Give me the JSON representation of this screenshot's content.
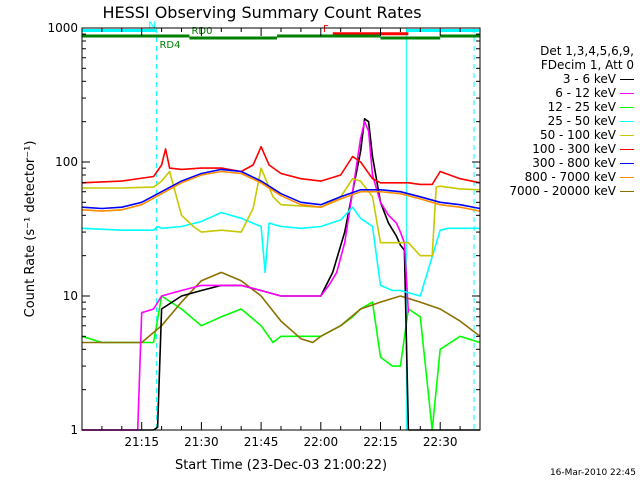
{
  "chart_data": {
    "type": "line",
    "title": "HESSI Observing Summary Count Rates",
    "xlabel": "Start Time (23-Dec-03 21:00:22)",
    "ylabel": "Count Rate (s⁻¹ detector⁻¹)",
    "x_unit": "minutes after 21:00",
    "xlim": [
      0,
      100
    ],
    "ylim": [
      1,
      1000
    ],
    "y_scale": "log",
    "x_ticks": [
      {
        "x": 15,
        "label": "21:15"
      },
      {
        "x": 30,
        "label": "21:30"
      },
      {
        "x": 45,
        "label": "21:45"
      },
      {
        "x": 60,
        "label": "22:00"
      },
      {
        "x": 75,
        "label": "22:15"
      },
      {
        "x": 90,
        "label": "22:30"
      }
    ],
    "y_ticks": [
      {
        "y": 1,
        "label": "1"
      },
      {
        "y": 10,
        "label": "10"
      },
      {
        "y": 100,
        "label": "100"
      },
      {
        "y": 1000,
        "label": "1000"
      }
    ],
    "grid": false,
    "legend_position": "right",
    "legend_header": [
      "Det 1,3,4,5,6,9,",
      "FDecim 1, Att 0"
    ],
    "vertical_markers": [
      {
        "x": 18.7,
        "color": "#00ffff",
        "style": "dashed"
      },
      {
        "x": 81.5,
        "color": "#00ffff",
        "style": "solid"
      },
      {
        "x": 98.5,
        "color": "#00ffff",
        "style": "dashed"
      }
    ],
    "flag_bars": [
      {
        "label": "N",
        "color": "#00ffff",
        "segments": [
          [
            0,
            18.7
          ],
          [
            81.5,
            100
          ]
        ],
        "y": 958
      },
      {
        "label": "F",
        "color": "#ff0000",
        "segments": [
          [
            63,
            82
          ]
        ],
        "y": 905
      },
      {
        "label": "RD0",
        "color": "#008000",
        "segments": [
          [
            0,
            27
          ],
          [
            49,
            75
          ],
          [
            90,
            100
          ]
        ],
        "y": 872
      },
      {
        "label": "RD4",
        "color": "#008000",
        "segments": [
          [
            27,
            49
          ],
          [
            75,
            90
          ]
        ],
        "y": 842
      }
    ],
    "series": [
      {
        "name": "3 - 6 keV",
        "color": "#000000",
        "x": [
          0,
          10,
          18,
          19,
          20,
          25,
          30,
          35,
          40,
          45,
          50,
          55,
          60,
          63,
          66,
          68,
          70,
          71,
          72,
          73,
          75,
          77,
          79,
          80,
          81,
          82,
          85,
          87,
          90,
          95,
          100
        ],
        "y": [
          1,
          1,
          1,
          1.05,
          8,
          10,
          11,
          12,
          12,
          11,
          10,
          10,
          10,
          15,
          30,
          60,
          120,
          210,
          200,
          110,
          50,
          35,
          28,
          24,
          22,
          0.9,
          1,
          1,
          1,
          1,
          1
        ]
      },
      {
        "name": "6 - 12 keV",
        "color": "#ff00ff",
        "x": [
          0,
          14,
          15,
          18,
          20,
          25,
          30,
          35,
          40,
          45,
          50,
          55,
          60,
          62,
          64,
          66,
          68,
          70,
          71,
          72,
          73,
          75,
          77,
          79,
          80,
          81,
          82
        ],
        "y": [
          1,
          1,
          7.5,
          8,
          10,
          11,
          12,
          12,
          12,
          11,
          10,
          10,
          10,
          12,
          15,
          25,
          60,
          150,
          200,
          170,
          80,
          50,
          40,
          35,
          30,
          25,
          7.5
        ]
      },
      {
        "name": "12 - 25 keV",
        "color": "#00ff00",
        "x": [
          0,
          5,
          10,
          15,
          18,
          20,
          25,
          30,
          35,
          40,
          45,
          48,
          50,
          55,
          60,
          65,
          68,
          70,
          73,
          75,
          78,
          80,
          82,
          85,
          88,
          90,
          95,
          100
        ],
        "y": [
          5,
          4.5,
          4.5,
          4.5,
          4.5,
          10,
          8,
          6,
          7,
          8,
          6,
          4.5,
          5,
          5,
          5,
          6,
          7,
          8,
          9,
          3.5,
          3,
          3,
          8,
          7,
          1,
          4,
          5,
          4.5
        ]
      },
      {
        "name": "25 - 50 keV",
        "color": "#00ffff",
        "x": [
          0,
          10,
          18,
          19,
          20,
          25,
          30,
          35,
          40,
          45,
          46,
          47,
          50,
          55,
          60,
          65,
          68,
          70,
          73,
          75,
          78,
          80,
          85,
          90,
          92,
          95,
          100
        ],
        "y": [
          32,
          31,
          31,
          33,
          32,
          33,
          36,
          42,
          38,
          33,
          15,
          35,
          33,
          32,
          33,
          37,
          46,
          38,
          33,
          12,
          11,
          11,
          10,
          31,
          32,
          32,
          32
        ]
      },
      {
        "name": "50 - 100 keV",
        "color": "#c8c800",
        "x": [
          0,
          10,
          18,
          20,
          22,
          25,
          28,
          30,
          35,
          40,
          43,
          45,
          48,
          50,
          55,
          60,
          65,
          68,
          70,
          73,
          75,
          80,
          82,
          85,
          88,
          89,
          90,
          95,
          100
        ],
        "y": [
          64,
          64,
          65,
          72,
          85,
          40,
          33,
          30,
          31,
          30,
          45,
          90,
          55,
          48,
          47,
          46,
          55,
          75,
          72,
          55,
          25,
          25,
          25,
          20,
          20,
          65,
          66,
          63,
          62
        ]
      },
      {
        "name": "100 - 300 keV",
        "color": "#ff0000",
        "x": [
          0,
          10,
          18,
          20,
          21,
          22,
          25,
          30,
          35,
          40,
          43,
          45,
          47,
          50,
          55,
          60,
          65,
          68,
          70,
          73,
          75,
          80,
          82,
          85,
          88,
          90,
          95,
          100
        ],
        "y": [
          70,
          72,
          78,
          95,
          125,
          90,
          88,
          90,
          90,
          85,
          95,
          130,
          95,
          82,
          75,
          72,
          80,
          110,
          100,
          75,
          70,
          70,
          70,
          68,
          68,
          85,
          75,
          70
        ]
      },
      {
        "name": "300 - 800 keV",
        "color": "#0000ff",
        "x": [
          0,
          5,
          10,
          15,
          20,
          25,
          30,
          35,
          40,
          45,
          50,
          55,
          60,
          65,
          70,
          75,
          80,
          85,
          90,
          95,
          100
        ],
        "y": [
          46,
          45,
          46,
          50,
          60,
          72,
          82,
          88,
          85,
          72,
          58,
          50,
          48,
          55,
          62,
          62,
          60,
          55,
          50,
          48,
          45
        ]
      },
      {
        "name": "800 - 7000 keV",
        "color": "#ff8c00",
        "x": [
          0,
          5,
          10,
          15,
          20,
          25,
          30,
          35,
          40,
          45,
          50,
          55,
          60,
          65,
          70,
          75,
          80,
          85,
          90,
          95,
          100
        ],
        "y": [
          44,
          43,
          44,
          48,
          58,
          70,
          80,
          85,
          82,
          70,
          56,
          48,
          46,
          53,
          60,
          60,
          58,
          53,
          48,
          46,
          43
        ]
      },
      {
        "name": "7000 - 20000 keV",
        "color": "#8b7000",
        "x": [
          0,
          5,
          10,
          15,
          20,
          25,
          30,
          35,
          40,
          45,
          50,
          55,
          58,
          60,
          65,
          70,
          75,
          80,
          85,
          90,
          95,
          100
        ],
        "y": [
          4.5,
          4.5,
          4.5,
          4.5,
          6,
          9,
          13,
          15,
          13,
          10,
          6.5,
          4.8,
          4.5,
          5,
          6,
          8,
          9,
          10,
          9,
          8,
          6.5,
          5
        ]
      }
    ]
  },
  "footer": "16-Mar-2010 22:45"
}
